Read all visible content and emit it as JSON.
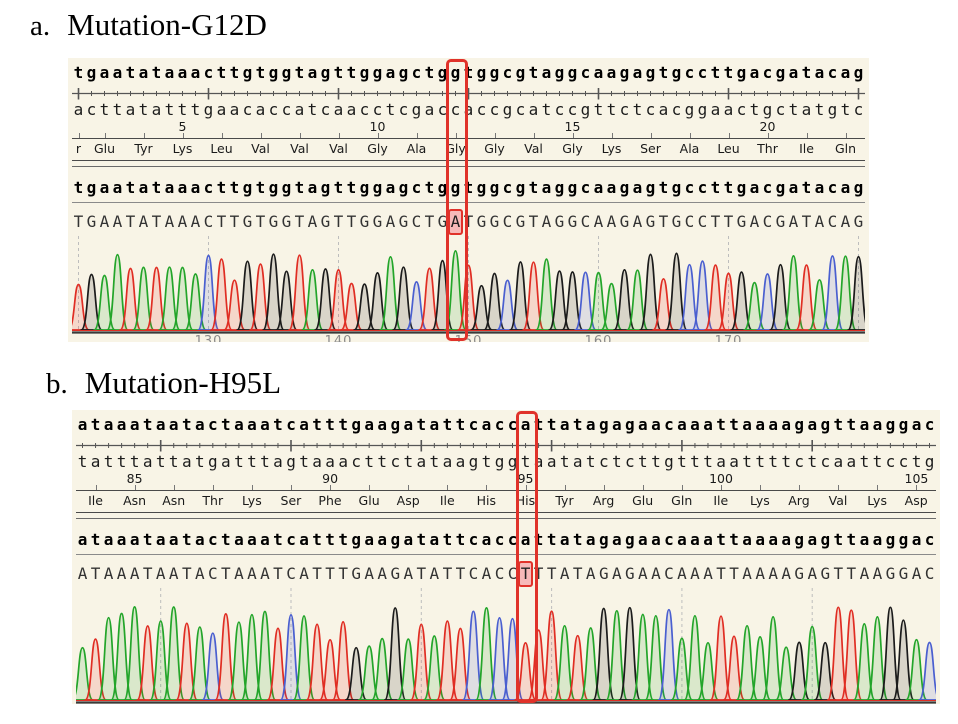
{
  "colors": {
    "panel_bg": "#f8f4e6",
    "box": "#e0322a",
    "highlight_bg": "#f7b9b9",
    "A": "#23a52a",
    "T": "#e02d23",
    "G": "#1b1b1b",
    "C": "#4a5fd0",
    "grid": "#bdbdbd",
    "ruler": "#555555"
  },
  "sections": [
    {
      "label": "a.",
      "title": "Mutation-G12D",
      "reference": "tgaatataaacttgtggtagttggagctggtggcgtaggcaagagtgccttgacgatacag",
      "complement": "acttatatttgaacaccatcaacctcgaccaccgcatccgttctcacggaactgctatgtc",
      "read": "TGAATATAAACTTGTGGTAGTTGGAGCTGATGGCGTAGGCAAGAGTGCCTTGACGATACAG",
      "mutation_index": 29,
      "amino_acids": [
        {
          "label": "r",
          "span": 1,
          "residue": 2
        },
        {
          "label": "Glu",
          "span": 3,
          "residue": 3
        },
        {
          "label": "Tyr",
          "span": 3,
          "residue": 4
        },
        {
          "label": "Lys",
          "span": 3,
          "residue": 5
        },
        {
          "label": "Leu",
          "span": 3,
          "residue": 6
        },
        {
          "label": "Val",
          "span": 3,
          "residue": 7
        },
        {
          "label": "Val",
          "span": 3,
          "residue": 8
        },
        {
          "label": "Val",
          "span": 3,
          "residue": 9
        },
        {
          "label": "Gly",
          "span": 3,
          "residue": 10
        },
        {
          "label": "Ala",
          "span": 3,
          "residue": 11
        },
        {
          "label": "Gly",
          "span": 3,
          "residue": 12
        },
        {
          "label": "Gly",
          "span": 3,
          "residue": 13
        },
        {
          "label": "Val",
          "span": 3,
          "residue": 14
        },
        {
          "label": "Gly",
          "span": 3,
          "residue": 15
        },
        {
          "label": "Lys",
          "span": 3,
          "residue": 16
        },
        {
          "label": "Ser",
          "span": 3,
          "residue": 17
        },
        {
          "label": "Ala",
          "span": 3,
          "residue": 18
        },
        {
          "label": "Leu",
          "span": 3,
          "residue": 19
        },
        {
          "label": "Thr",
          "span": 3,
          "residue": 20
        },
        {
          "label": "Ile",
          "span": 3,
          "residue": 21
        },
        {
          "label": "Gln",
          "span": 3,
          "residue": 22
        }
      ],
      "numbered_residues": [
        5,
        10,
        15,
        20
      ],
      "trace_numbers": [
        {
          "base": 10,
          "label": "130"
        },
        {
          "base": 20,
          "label": "140"
        },
        {
          "base": 30,
          "label": "150"
        },
        {
          "base": 40,
          "label": "160"
        },
        {
          "base": 50,
          "label": "170"
        }
      ]
    },
    {
      "label": "b.",
      "title": "Mutation-H95L",
      "reference": "ataaataatactaaatcatttgaagatattcaccattatagagaacaaattaaaagagttaaggac",
      "complement": "tatttattatgatttagtaaacttctataagtggtaatatctcttgtttaattttctcaattcctg",
      "read": "ATAAATAATACTAAATCATTTGAAGATATTCACCTTTATAGAGAACAAATTAAAAGAGTTAAGGAC",
      "mutation_index": 34,
      "amino_acids": [
        {
          "label": "Ile",
          "span": 3,
          "residue": 84
        },
        {
          "label": "Asn",
          "span": 3,
          "residue": 85
        },
        {
          "label": "Asn",
          "span": 3,
          "residue": 86
        },
        {
          "label": "Thr",
          "span": 3,
          "residue": 87
        },
        {
          "label": "Lys",
          "span": 3,
          "residue": 88
        },
        {
          "label": "Ser",
          "span": 3,
          "residue": 89
        },
        {
          "label": "Phe",
          "span": 3,
          "residue": 90
        },
        {
          "label": "Glu",
          "span": 3,
          "residue": 91
        },
        {
          "label": "Asp",
          "span": 3,
          "residue": 92
        },
        {
          "label": "Ile",
          "span": 3,
          "residue": 93
        },
        {
          "label": "His",
          "span": 3,
          "residue": 94
        },
        {
          "label": "His",
          "span": 3,
          "residue": 95
        },
        {
          "label": "Tyr",
          "span": 3,
          "residue": 96
        },
        {
          "label": "Arg",
          "span": 3,
          "residue": 97
        },
        {
          "label": "Glu",
          "span": 3,
          "residue": 98
        },
        {
          "label": "Gln",
          "span": 3,
          "residue": 99
        },
        {
          "label": "Ile",
          "span": 3,
          "residue": 100
        },
        {
          "label": "Lys",
          "span": 3,
          "residue": 101
        },
        {
          "label": "Arg",
          "span": 3,
          "residue": 102
        },
        {
          "label": "Val",
          "span": 3,
          "residue": 103
        },
        {
          "label": "Lys",
          "span": 3,
          "residue": 104
        },
        {
          "label": "Asp",
          "span": 3,
          "residue": 105
        }
      ],
      "numbered_residues": [
        85,
        90,
        95,
        100,
        105
      ],
      "trace_numbers": []
    }
  ]
}
